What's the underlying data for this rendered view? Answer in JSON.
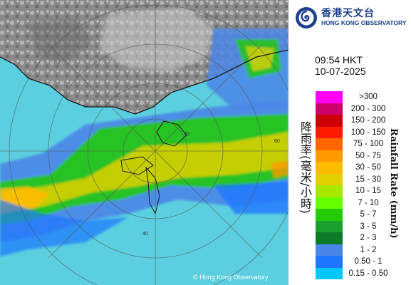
{
  "brand": {
    "name_cn": "香港天文台",
    "name_en": "HONG KONG OBSERVATORY"
  },
  "timestamp": {
    "time": "09:54 HKT",
    "date": "10-07-2025"
  },
  "legend": {
    "title_cn": "降雨率(毫米/小時)",
    "title_en": "Rainfall Rate (mm/h)",
    "bins": [
      {
        "label": ">300",
        "color": "#ff00ff"
      },
      {
        "label": "200 - 300",
        "color": "#cc0066"
      },
      {
        "label": "150 - 200",
        "color": "#cc0000"
      },
      {
        "label": "100 - 150",
        "color": "#ff1a00"
      },
      {
        "label": "75 - 100",
        "color": "#ff6600"
      },
      {
        "label": "50 - 75",
        "color": "#ff9900"
      },
      {
        "label": "30 - 50",
        "color": "#ffbb00"
      },
      {
        "label": "15 - 30",
        "color": "#e0d000"
      },
      {
        "label": "10 - 15",
        "color": "#a8e800"
      },
      {
        "label": "7 - 10",
        "color": "#66ff00"
      },
      {
        "label": "5 - 7",
        "color": "#22cc00"
      },
      {
        "label": "3 - 5",
        "color": "#1aa030"
      },
      {
        "label": "2 - 3",
        "color": "#0d7a2a"
      },
      {
        "label": "1 - 2",
        "color": "#4a86e8"
      },
      {
        "label": "0.50 - 1",
        "color": "#1e78ff"
      },
      {
        "label": "0.15 - 0.50",
        "color": "#00c8ff"
      }
    ]
  },
  "map": {
    "copyright": "© Hong Kong Observatory",
    "ring_labels": [
      "20",
      "40",
      "60"
    ]
  },
  "colors": {
    "sea": "#5bcfdf",
    "land": "#8c8c8c",
    "brand_blue": "#1d3f8c"
  }
}
